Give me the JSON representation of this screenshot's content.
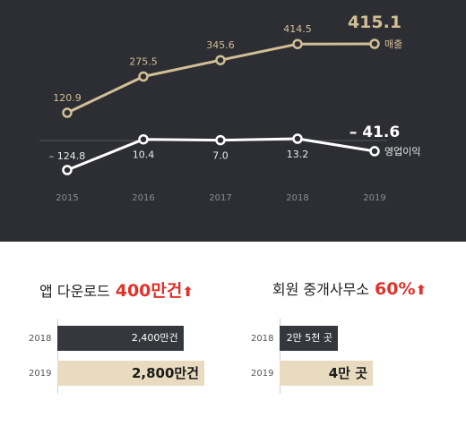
{
  "chart_data": [
    {
      "type": "line",
      "x": [
        "2015",
        "2016",
        "2017",
        "2018",
        "2019"
      ],
      "series": [
        {
          "name": "매출",
          "values": [
            120.9,
            275.5,
            345.6,
            414.5,
            415.1
          ],
          "labels": [
            "120.9",
            "275.5",
            "345.6",
            "414.5",
            "415.1"
          ],
          "color": "#d2bf96"
        },
        {
          "name": "영업이익",
          "values": [
            -124.8,
            10.4,
            7.0,
            13.2,
            -41.6
          ],
          "labels": [
            "– 124.8",
            "10.4",
            "7.0",
            "13.2",
            "– 41.6"
          ],
          "color": "#ffffff"
        }
      ],
      "background": "#2d2e33",
      "grid": false
    },
    {
      "type": "bar",
      "title": "앱 다운로드",
      "highlight": "400만건",
      "categories": [
        "2018",
        "2019"
      ],
      "values": [
        2400,
        2800
      ],
      "value_labels": [
        "2,400만건",
        "2,800만건"
      ],
      "colors": [
        "#34373c",
        "#e8dbbf"
      ]
    },
    {
      "type": "bar",
      "title": "회원 중개사무소",
      "highlight": "60%",
      "categories": [
        "2018",
        "2019"
      ],
      "values": [
        2.5,
        4
      ],
      "value_labels": [
        "2만 5천 곳",
        "4만 곳"
      ],
      "colors": [
        "#34373c",
        "#e8dbbf"
      ]
    }
  ],
  "arrow_glyph": "⬆"
}
